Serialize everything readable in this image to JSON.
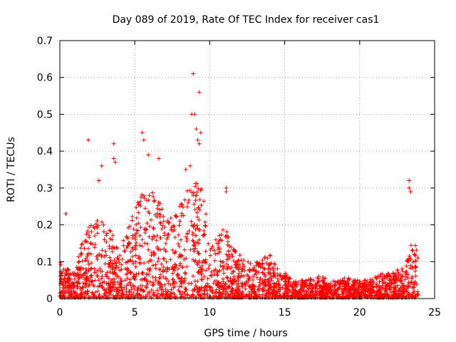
{
  "chart_data": {
    "type": "scatter",
    "title": "Day 089 of 2019, Rate Of TEC Index for receiver cas1",
    "xlabel": "GPS time / hours",
    "ylabel": "ROTI / TECUs",
    "xlim": [
      0,
      25
    ],
    "ylim": [
      0,
      0.7
    ],
    "xticks": [
      "0",
      "5",
      "10",
      "15",
      "20",
      "25"
    ],
    "yticks": [
      "0",
      "0.1",
      "0.2",
      "0.3",
      "0.4",
      "0.5",
      "0.6",
      "0.7"
    ],
    "grid": true,
    "marker": "+",
    "series_color": "#ff0000",
    "envelope": {
      "description": "upper envelope of the dense ROTI point cloud, in data units (hours, TECU/min)",
      "x": [
        0.0,
        0.5,
        1.0,
        1.5,
        2.0,
        2.5,
        3.0,
        3.5,
        4.0,
        4.5,
        5.0,
        5.5,
        6.0,
        6.5,
        7.0,
        7.5,
        8.0,
        8.5,
        9.0,
        9.5,
        10.0,
        10.5,
        11.0,
        11.5,
        12.0,
        12.5,
        13.0,
        13.5,
        14.0,
        14.5,
        15.0,
        15.5,
        16.0,
        16.5,
        17.0,
        17.5,
        18.0,
        18.5,
        19.0,
        19.5,
        20.0,
        20.5,
        21.0,
        21.5,
        22.0,
        22.5,
        23.0,
        23.5,
        23.9
      ],
      "y": [
        0.1,
        0.08,
        0.07,
        0.16,
        0.2,
        0.22,
        0.2,
        0.18,
        0.12,
        0.2,
        0.24,
        0.3,
        0.28,
        0.3,
        0.22,
        0.22,
        0.26,
        0.3,
        0.32,
        0.3,
        0.17,
        0.17,
        0.2,
        0.14,
        0.12,
        0.1,
        0.1,
        0.11,
        0.12,
        0.09,
        0.07,
        0.05,
        0.05,
        0.05,
        0.06,
        0.06,
        0.05,
        0.05,
        0.06,
        0.05,
        0.05,
        0.05,
        0.06,
        0.07,
        0.07,
        0.08,
        0.09,
        0.17,
        0.15
      ]
    },
    "outliers": [
      {
        "x": 0.4,
        "y": 0.23
      },
      {
        "x": 1.9,
        "y": 0.43
      },
      {
        "x": 2.6,
        "y": 0.32
      },
      {
        "x": 2.8,
        "y": 0.36
      },
      {
        "x": 3.6,
        "y": 0.42
      },
      {
        "x": 3.6,
        "y": 0.38
      },
      {
        "x": 3.7,
        "y": 0.37
      },
      {
        "x": 5.5,
        "y": 0.45
      },
      {
        "x": 5.6,
        "y": 0.43
      },
      {
        "x": 5.9,
        "y": 0.39
      },
      {
        "x": 6.6,
        "y": 0.38
      },
      {
        "x": 8.4,
        "y": 0.35
      },
      {
        "x": 8.7,
        "y": 0.36
      },
      {
        "x": 8.8,
        "y": 0.5
      },
      {
        "x": 8.9,
        "y": 0.61
      },
      {
        "x": 9.0,
        "y": 0.5
      },
      {
        "x": 9.1,
        "y": 0.46
      },
      {
        "x": 9.2,
        "y": 0.43
      },
      {
        "x": 9.3,
        "y": 0.56
      },
      {
        "x": 9.3,
        "y": 0.42
      },
      {
        "x": 9.4,
        "y": 0.45
      },
      {
        "x": 11.1,
        "y": 0.3
      },
      {
        "x": 11.1,
        "y": 0.29
      },
      {
        "x": 23.3,
        "y": 0.32
      },
      {
        "x": 23.3,
        "y": 0.3
      },
      {
        "x": 23.4,
        "y": 0.29
      }
    ]
  }
}
